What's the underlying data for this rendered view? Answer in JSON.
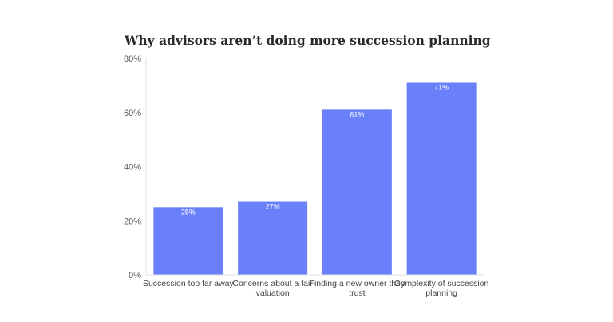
{
  "chart_data": {
    "type": "bar",
    "title": "Why advisors aren’t doing more succession planning",
    "xlabel": "",
    "ylabel": "",
    "categories": [
      [
        "Succession too far away"
      ],
      [
        "Concerns about a fair",
        "valuation"
      ],
      [
        "Finding a new owner they",
        "trust"
      ],
      [
        "Complexity of succession",
        "planning"
      ]
    ],
    "values": [
      25,
      27,
      61,
      71
    ],
    "value_labels": [
      "25%",
      "27%",
      "61%",
      "71%"
    ],
    "ylim": [
      0,
      80
    ],
    "yticks": [
      0,
      20,
      40,
      60,
      80
    ],
    "ytick_labels": [
      "0%",
      "20%",
      "40%",
      "60%",
      "80%"
    ],
    "grid": false,
    "colors": {
      "bar": "#6a80fb",
      "axis": "#e2e2e2",
      "title": "#2a2a2a"
    }
  }
}
